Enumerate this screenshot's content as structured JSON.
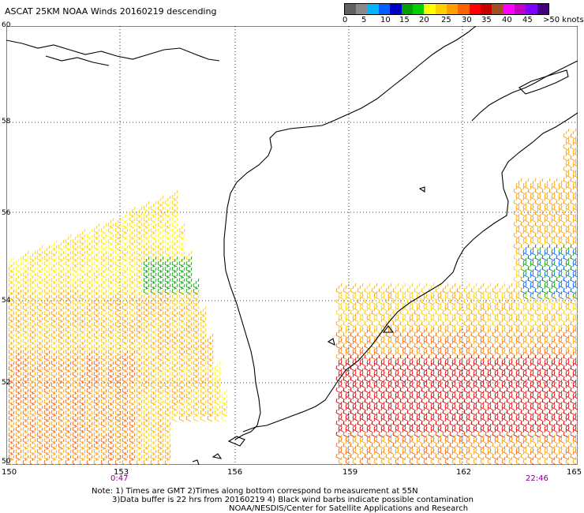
{
  "title": "ASCAT 25KM NOAA Winds 20160219 descending",
  "colorbar": {
    "colors": [
      "#606060",
      "#8a8a8a",
      "#00b4ff",
      "#0060ff",
      "#0000c8",
      "#00a000",
      "#00d000",
      "#ffff00",
      "#ffd000",
      "#ffa000",
      "#ff6000",
      "#ff0000",
      "#c80000",
      "#a05020",
      "#ff00ff",
      "#c000c0",
      "#8000ff",
      "#400080"
    ],
    "labels": [
      "0",
      "5",
      "10",
      "15",
      "20",
      "25",
      "30",
      "35",
      "40",
      "45",
      ">50 knots"
    ]
  },
  "axes": {
    "x_ticks": [
      "150",
      "153",
      "156",
      "159",
      "162",
      "165"
    ],
    "y_ticks": [
      "60",
      "58",
      "56",
      "54",
      "52",
      "50"
    ]
  },
  "times": {
    "start": "0:47",
    "end": "22:46"
  },
  "notes": [
    "Note: 1) Times are GMT 2)Times along bottom correspond to measurement at 55N",
    "3)Data buffer is 22 hrs from 20160219 4) Black wind barbs indicate possible contamination",
    "NOAA/NESDIS/Center for Satellite Applications and Research"
  ]
}
